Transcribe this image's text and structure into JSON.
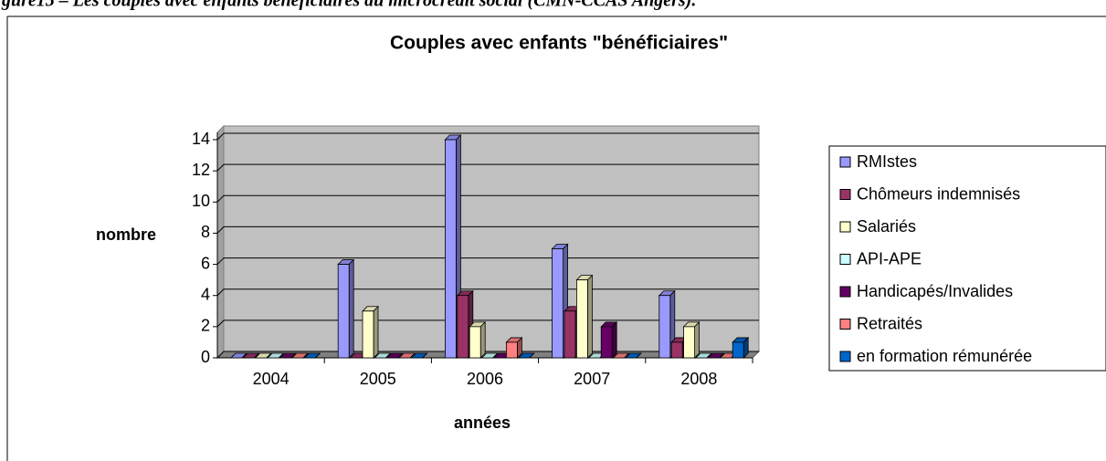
{
  "caption": "gure15 – Les couples avec enfants bénéficiaires du microcrédit social (CMN-CCAS Angers).",
  "chart_data": {
    "type": "bar",
    "title": "Couples avec enfants \"bénéficiaires\"",
    "x_label": "années",
    "y_label": "nombre",
    "categories": [
      "2004",
      "2005",
      "2006",
      "2007",
      "2008"
    ],
    "series": [
      {
        "name": "RMIstes",
        "color": "#9999ff",
        "values": [
          0,
          6,
          14,
          7,
          4
        ]
      },
      {
        "name": "Chômeurs indemnisés",
        "color": "#993366",
        "values": [
          0,
          0,
          4,
          3,
          1
        ]
      },
      {
        "name": "Salariés",
        "color": "#ffffcc",
        "values": [
          0,
          3,
          2,
          5,
          2
        ]
      },
      {
        "name": "API-APE",
        "color": "#ccffff",
        "values": [
          0,
          0,
          0,
          0,
          0
        ]
      },
      {
        "name": "Handicapés/Invalides",
        "color": "#660066",
        "values": [
          0,
          0,
          0,
          2,
          0
        ]
      },
      {
        "name": "Retraités",
        "color": "#ff8080",
        "values": [
          0,
          0,
          1,
          0,
          0
        ]
      },
      {
        "name": "en formation rémunérée",
        "color": "#0066cc",
        "values": [
          0,
          0,
          0,
          0,
          1
        ]
      }
    ],
    "ylim": [
      0,
      14
    ],
    "yticks": [
      0,
      2,
      4,
      6,
      8,
      10,
      12,
      14
    ],
    "grid": true,
    "legend": "right"
  }
}
